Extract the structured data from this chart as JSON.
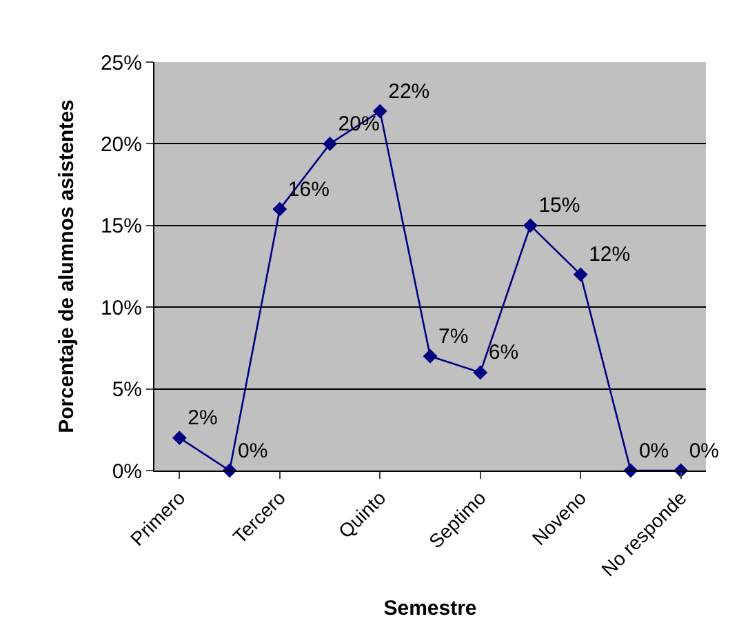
{
  "chart_data": {
    "type": "line",
    "xlabel": "Semestre",
    "ylabel": "Porcentaje de alumnos asistentes",
    "categories": [
      "Primero",
      null,
      "Tercero",
      null,
      "Quinto",
      null,
      "Septimo",
      null,
      "Noveno",
      null,
      "No responde"
    ],
    "series": [
      {
        "color": "#000080",
        "values": [
          2,
          0,
          16,
          20,
          22,
          7,
          6,
          15,
          12,
          0,
          0
        ],
        "value_labels": [
          "2%",
          "0%",
          "16%",
          "20%",
          "22%",
          "7%",
          "6%",
          "15%",
          "12%",
          "0%",
          "0%"
        ]
      }
    ],
    "ylim": [
      0,
      25
    ],
    "yticks": [
      {
        "value": 0,
        "label": "0%"
      },
      {
        "value": 5,
        "label": "5%"
      },
      {
        "value": 10,
        "label": "10%"
      },
      {
        "value": 15,
        "label": "15%"
      },
      {
        "value": 20,
        "label": "20%"
      },
      {
        "value": 25,
        "label": "25%"
      }
    ],
    "grid": "y",
    "marker": "diamond",
    "line_style": "solid"
  }
}
